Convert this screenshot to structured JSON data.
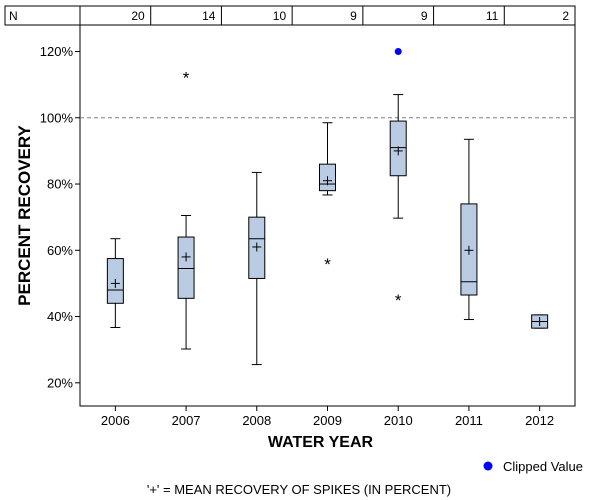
{
  "chart_data": {
    "type": "box",
    "xlabel": "WATER YEAR",
    "ylabel": "PERCENT RECOVERY",
    "ylim": [
      13,
      128
    ],
    "yticks": [
      20,
      40,
      60,
      80,
      100,
      120
    ],
    "ytick_labels": [
      "20%",
      "40%",
      "60%",
      "80%",
      "100%",
      "120%"
    ],
    "reference_line": 100,
    "n_header_label": "N",
    "categories": [
      "2006",
      "2007",
      "2008",
      "2009",
      "2010",
      "2011",
      "2012"
    ],
    "n_counts": [
      "20",
      "14",
      "10",
      "9",
      "9",
      "11",
      "2"
    ],
    "boxes": [
      {
        "year": "2006",
        "q1": 44,
        "median": 48,
        "q3": 57.5,
        "whisker_low": 36.7,
        "whisker_high": 63.5,
        "mean": 50,
        "outliers": [],
        "clipped": []
      },
      {
        "year": "2007",
        "q1": 45.5,
        "median": 54.5,
        "q3": 64,
        "whisker_low": 30.2,
        "whisker_high": 70.5,
        "mean": 58,
        "outliers": [
          113
        ],
        "clipped": []
      },
      {
        "year": "2008",
        "q1": 51.5,
        "median": 63.5,
        "q3": 70,
        "whisker_low": 25.5,
        "whisker_high": 83.5,
        "mean": 61,
        "outliers": [],
        "clipped": []
      },
      {
        "year": "2009",
        "q1": 78,
        "median": 80,
        "q3": 86,
        "whisker_low": 76.7,
        "whisker_high": 98.5,
        "mean": 81,
        "outliers": [
          56.7
        ],
        "clipped": []
      },
      {
        "year": "2010",
        "q1": 82.5,
        "median": 91,
        "q3": 99,
        "whisker_low": 69.7,
        "whisker_high": 107,
        "mean": 90,
        "outliers": [
          45.9
        ],
        "clipped": [
          120
        ]
      },
      {
        "year": "2011",
        "q1": 46.5,
        "median": 50.5,
        "q3": 74,
        "whisker_low": 39.1,
        "whisker_high": 93.5,
        "mean": 60,
        "outliers": [],
        "clipped": []
      },
      {
        "year": "2012",
        "q1": 36.5,
        "median": 38.5,
        "q3": 40.5,
        "whisker_low": 36.5,
        "whisker_high": 40.5,
        "mean": 38.5,
        "outliers": [],
        "clipped": []
      }
    ],
    "legend": {
      "clipped_label": "Clipped Value",
      "position": "bottom-right"
    },
    "footnote": "'+' = MEAN RECOVERY OF SPIKES (IN PERCENT)",
    "colors": {
      "box_fill": "#b9cce4",
      "clipped": "#0000ff",
      "reference_line": "#7f7f7f",
      "ink": "#000000"
    }
  }
}
